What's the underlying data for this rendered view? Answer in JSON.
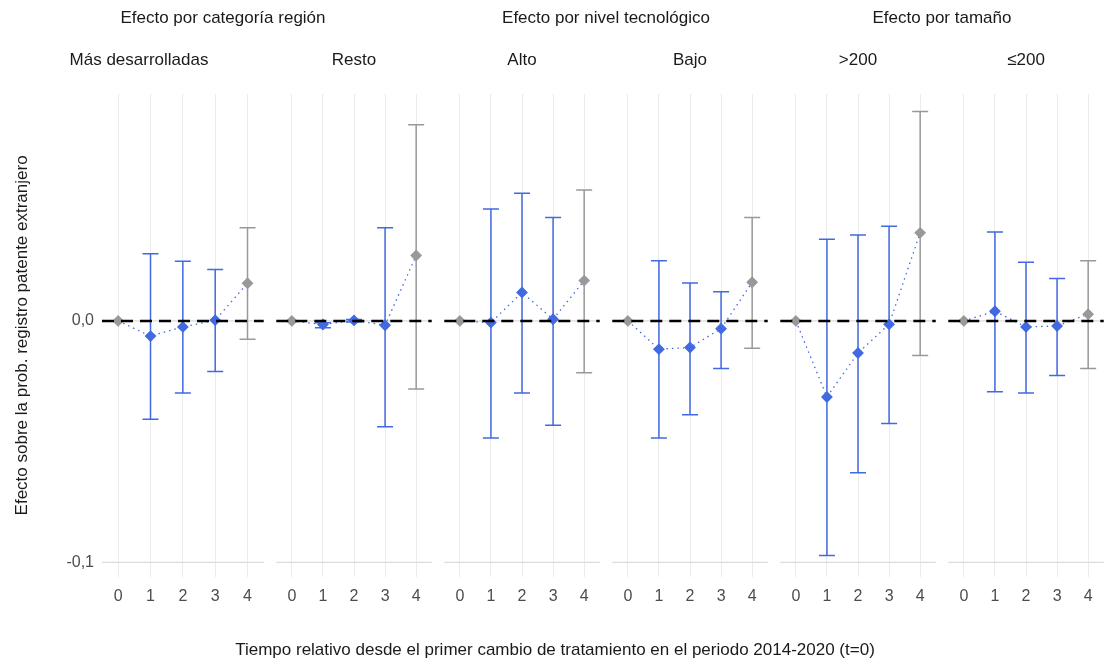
{
  "chart_data": [
    {
      "type": "line",
      "title": "Efecto por categoría región",
      "subtitle": "Más desarrolladas",
      "xlabel": "Tiempo relativo desde el primer cambio de tratamiento en el periodo 2014-2020 (t=0)",
      "ylabel": "Efecto sobre la prob. registro patente extranjero",
      "categories": [
        "0",
        "1",
        "2",
        "3",
        "4"
      ],
      "series": [
        {
          "color": "#4169e1",
          "colors": [
            "#999999",
            "#4169e1",
            "#4169e1",
            "#4169e1",
            "#999999"
          ],
          "values": [
            0,
            -0.0063,
            -0.0025,
            0.0003,
            0.0156
          ],
          "errors": [
            null,
            [
              -0.0407,
              0.0278
            ],
            [
              -0.0299,
              0.0247
            ],
            [
              -0.021,
              0.0213
            ],
            [
              -0.0076,
              0.0386
            ]
          ]
        }
      ],
      "ylim": [
        -0.106,
        0.094
      ],
      "yticks": [
        {
          "value": -0.1,
          "label": "-0,1"
        },
        {
          "value": 0,
          "label": "0,0"
        }
      ],
      "grid": true,
      "marker": "diamond",
      "line_style": "dotted",
      "ref_lines": [
        {
          "axis": "y",
          "value": 0,
          "color": "#000000",
          "line_style": "dashed"
        }
      ]
    },
    {
      "type": "line",
      "subtitle": "Resto",
      "categories": [
        "0",
        "1",
        "2",
        "3",
        "4"
      ],
      "series": [
        {
          "color": "#4169e1",
          "colors": [
            "#999999",
            "#4169e1",
            "#4169e1",
            "#4169e1",
            "#999999"
          ],
          "values": [
            0,
            -0.0015,
            0.0002,
            -0.0018,
            0.0271
          ],
          "errors": [
            null,
            [
              -0.0028,
              -0.0008
            ],
            [
              -0.0004,
              0.0006
            ],
            [
              -0.0438,
              0.0386
            ],
            [
              -0.0282,
              0.0813
            ]
          ]
        }
      ],
      "ylim": [
        -0.106,
        0.094
      ],
      "tick_labels": "x",
      "grid": true,
      "marker": "diamond",
      "line_style": "dotted",
      "ref_lines": [
        {
          "axis": "y",
          "value": 0,
          "color": "#000000",
          "line_style": "dashed"
        }
      ]
    },
    {
      "type": "line",
      "title": "Efecto por nivel tecnológico",
      "subtitle": "Alto",
      "categories": [
        "0",
        "1",
        "2",
        "3",
        "4"
      ],
      "series": [
        {
          "color": "#4169e1",
          "colors": [
            "#999999",
            "#4169e1",
            "#4169e1",
            "#4169e1",
            "#999999"
          ],
          "values": [
            0,
            -0.0007,
            0.0118,
            0.0007,
            0.0167
          ],
          "errors": [
            null,
            [
              -0.0485,
              0.0464
            ],
            [
              -0.0299,
              0.0529
            ],
            [
              -0.0432,
              0.0428
            ],
            [
              -0.0215,
              0.0542
            ]
          ]
        }
      ],
      "ylim": [
        -0.106,
        0.094
      ],
      "tick_labels": "x",
      "grid": true,
      "marker": "diamond",
      "line_style": "dotted",
      "ref_lines": [
        {
          "axis": "y",
          "value": 0,
          "color": "#000000",
          "line_style": "dashed"
        }
      ]
    },
    {
      "type": "line",
      "subtitle": "Bajo",
      "categories": [
        "0",
        "1",
        "2",
        "3",
        "4"
      ],
      "series": [
        {
          "color": "#4169e1",
          "colors": [
            "#999999",
            "#4169e1",
            "#4169e1",
            "#4169e1",
            "#999999"
          ],
          "values": [
            0,
            -0.0117,
            -0.011,
            -0.0032,
            0.016
          ],
          "errors": [
            null,
            [
              -0.0485,
              0.0249
            ],
            [
              -0.0389,
              0.0157
            ],
            [
              -0.0197,
              0.0121
            ],
            [
              -0.0113,
              0.0428
            ]
          ]
        }
      ],
      "ylim": [
        -0.106,
        0.094
      ],
      "tick_labels": "x",
      "grid": true,
      "marker": "diamond",
      "line_style": "dotted",
      "ref_lines": [
        {
          "axis": "y",
          "value": 0,
          "color": "#000000",
          "line_style": "dashed"
        }
      ]
    },
    {
      "type": "line",
      "title": "Efecto por tamaño",
      "subtitle": ">200",
      "categories": [
        "0",
        "1",
        "2",
        "3",
        "4"
      ],
      "series": [
        {
          "color": "#4169e1",
          "colors": [
            "#999999",
            "#4169e1",
            "#4169e1",
            "#4169e1",
            "#999999"
          ],
          "values": [
            0,
            -0.0315,
            -0.0133,
            -0.0014,
            0.0365
          ],
          "errors": [
            null,
            [
              -0.0972,
              0.0338
            ],
            [
              -0.0629,
              0.0356
            ],
            [
              -0.0425,
              0.0392
            ],
            [
              -0.0143,
              0.0868
            ]
          ]
        }
      ],
      "ylim": [
        -0.106,
        0.094
      ],
      "tick_labels": "x",
      "grid": true,
      "marker": "diamond",
      "line_style": "dotted",
      "ref_lines": [
        {
          "axis": "y",
          "value": 0,
          "color": "#000000",
          "line_style": "dashed"
        }
      ]
    },
    {
      "type": "line",
      "subtitle": "≤200",
      "categories": [
        "0",
        "1",
        "2",
        "3",
        "4"
      ],
      "series": [
        {
          "color": "#4169e1",
          "colors": [
            "#999999",
            "#4169e1",
            "#4169e1",
            "#4169e1",
            "#999999"
          ],
          "values": [
            0,
            0.004,
            -0.0025,
            -0.0021,
            0.0028
          ],
          "errors": [
            null,
            [
              -0.0293,
              0.0368
            ],
            [
              -0.0299,
              0.0243
            ],
            [
              -0.0226,
              0.0176
            ],
            [
              -0.0197,
              0.0249
            ]
          ]
        }
      ],
      "ylim": [
        -0.106,
        0.094
      ],
      "tick_labels": "x",
      "grid": true,
      "marker": "diamond",
      "line_style": "dotted",
      "ref_lines": [
        {
          "axis": "y",
          "value": 0,
          "color": "#000000",
          "line_style": "dashed"
        }
      ]
    }
  ]
}
